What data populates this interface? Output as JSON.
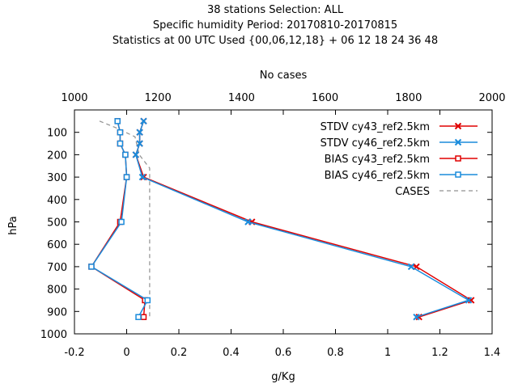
{
  "chart_data": {
    "type": "line",
    "title_lines": [
      "38 stations Selection: ALL",
      "Specific humidity  Period: 20170810-20170815",
      "Statistics at 00 UTC  Used {00,06,12,18} + 06 12 18 24 36 48"
    ],
    "xlabel": "g/Kg",
    "ylabel": "hPa",
    "x2label": "No cases",
    "xlim": [
      -0.2,
      1.4
    ],
    "ylim": [
      1000,
      0
    ],
    "x2lim": [
      1000,
      2000
    ],
    "xticks": [
      -0.2,
      0,
      0.2,
      0.4,
      0.6,
      0.8,
      1,
      1.2,
      1.4
    ],
    "xtick_labels": [
      "-0.2",
      "0",
      "0.2",
      "0.4",
      "0.6",
      "0.8",
      "1",
      "1.2",
      "1.4"
    ],
    "yticks": [
      100,
      200,
      300,
      400,
      500,
      600,
      700,
      800,
      900,
      1000
    ],
    "ytick_labels": [
      "100",
      "200",
      "300",
      "400",
      "500",
      "600",
      "700",
      "800",
      "900",
      "1000"
    ],
    "x2ticks": [
      1000,
      1200,
      1400,
      1600,
      1800,
      2000
    ],
    "x2tick_labels": [
      "1000",
      "1200",
      "1400",
      "1600",
      "1800",
      "2000"
    ],
    "legend_position": "top-right",
    "grid": false,
    "series": [
      {
        "name": "STDV cy43_ref2.5km",
        "color": "#e00000",
        "marker": "x",
        "axis": "x",
        "points": [
          {
            "x": 0.065,
            "y": 50
          },
          {
            "x": 0.05,
            "y": 100
          },
          {
            "x": 0.05,
            "y": 150
          },
          {
            "x": 0.035,
            "y": 200
          },
          {
            "x": 0.065,
            "y": 300
          },
          {
            "x": 0.48,
            "y": 500
          },
          {
            "x": 1.11,
            "y": 700
          },
          {
            "x": 1.32,
            "y": 850
          },
          {
            "x": 1.12,
            "y": 925
          }
        ]
      },
      {
        "name": "STDV cy46_ref2.5km",
        "color": "#1a8cdc",
        "marker": "x",
        "axis": "x",
        "points": [
          {
            "x": 0.065,
            "y": 50
          },
          {
            "x": 0.05,
            "y": 100
          },
          {
            "x": 0.05,
            "y": 150
          },
          {
            "x": 0.035,
            "y": 200
          },
          {
            "x": 0.06,
            "y": 300
          },
          {
            "x": 0.465,
            "y": 500
          },
          {
            "x": 1.09,
            "y": 700
          },
          {
            "x": 1.31,
            "y": 850
          },
          {
            "x": 1.11,
            "y": 925
          }
        ]
      },
      {
        "name": "BIAS cy43_ref2.5km",
        "color": "#e00000",
        "marker": "square",
        "axis": "x",
        "points": [
          {
            "x": -0.035,
            "y": 50
          },
          {
            "x": -0.025,
            "y": 100
          },
          {
            "x": -0.025,
            "y": 150
          },
          {
            "x": -0.005,
            "y": 200
          },
          {
            "x": 0.0,
            "y": 300
          },
          {
            "x": -0.025,
            "y": 500
          },
          {
            "x": -0.135,
            "y": 700
          },
          {
            "x": 0.07,
            "y": 850
          },
          {
            "x": 0.065,
            "y": 925
          }
        ]
      },
      {
        "name": "BIAS cy46_ref2.5km",
        "color": "#1a8cdc",
        "marker": "square",
        "axis": "x",
        "points": [
          {
            "x": -0.035,
            "y": 50
          },
          {
            "x": -0.025,
            "y": 100
          },
          {
            "x": -0.025,
            "y": 150
          },
          {
            "x": -0.005,
            "y": 200
          },
          {
            "x": 0.0,
            "y": 300
          },
          {
            "x": -0.02,
            "y": 500
          },
          {
            "x": -0.135,
            "y": 700
          },
          {
            "x": 0.08,
            "y": 850
          },
          {
            "x": 0.045,
            "y": 925
          }
        ]
      },
      {
        "name": "CASES",
        "color": "#909090",
        "marker": "none",
        "dashed": true,
        "axis": "x2",
        "points": [
          {
            "x": 1060,
            "y": 50
          },
          {
            "x": 1100,
            "y": 80
          },
          {
            "x": 1145,
            "y": 120
          },
          {
            "x": 1155,
            "y": 200
          },
          {
            "x": 1180,
            "y": 260
          },
          {
            "x": 1180,
            "y": 500
          },
          {
            "x": 1180,
            "y": 700
          },
          {
            "x": 1180,
            "y": 850
          },
          {
            "x": 1180,
            "y": 925
          }
        ]
      }
    ]
  }
}
